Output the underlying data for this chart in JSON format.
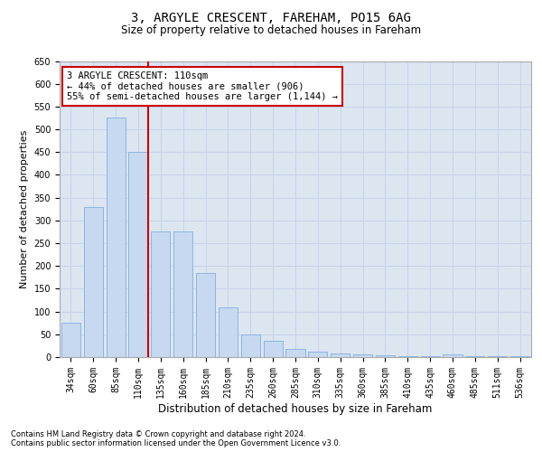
{
  "title_line1": "3, ARGYLE CRESCENT, FAREHAM, PO15 6AG",
  "title_line2": "Size of property relative to detached houses in Fareham",
  "xlabel": "Distribution of detached houses by size in Fareham",
  "ylabel": "Number of detached properties",
  "categories": [
    "34sqm",
    "60sqm",
    "85sqm",
    "110sqm",
    "135sqm",
    "160sqm",
    "185sqm",
    "210sqm",
    "235sqm",
    "260sqm",
    "285sqm",
    "310sqm",
    "335sqm",
    "360sqm",
    "385sqm",
    "410sqm",
    "435sqm",
    "460sqm",
    "485sqm",
    "511sqm",
    "536sqm"
  ],
  "values": [
    75,
    330,
    525,
    450,
    275,
    275,
    185,
    110,
    50,
    35,
    18,
    12,
    8,
    5,
    3,
    2,
    1,
    5,
    2,
    2,
    2
  ],
  "bar_color": "#c6d9f0",
  "bar_edge_color": "#8db4e2",
  "red_line_index": 3,
  "annotation_text": "3 ARGYLE CRESCENT: 110sqm\n← 44% of detached houses are smaller (906)\n55% of semi-detached houses are larger (1,144) →",
  "annotation_box_color": "#ffffff",
  "annotation_box_edge": "#cc0000",
  "ylim": [
    0,
    650
  ],
  "yticks": [
    0,
    50,
    100,
    150,
    200,
    250,
    300,
    350,
    400,
    450,
    500,
    550,
    600,
    650
  ],
  "grid_color": "#c8d4e8",
  "footnote_line1": "Contains HM Land Registry data © Crown copyright and database right 2024.",
  "footnote_line2": "Contains public sector information licensed under the Open Government Licence v3.0.",
  "bg_color": "#dce6f1",
  "title_fontsize": 10,
  "subtitle_fontsize": 8.5,
  "ylabel_fontsize": 8,
  "xlabel_fontsize": 8.5,
  "tick_fontsize": 7,
  "annot_fontsize": 7.5,
  "footnote_fontsize": 6
}
